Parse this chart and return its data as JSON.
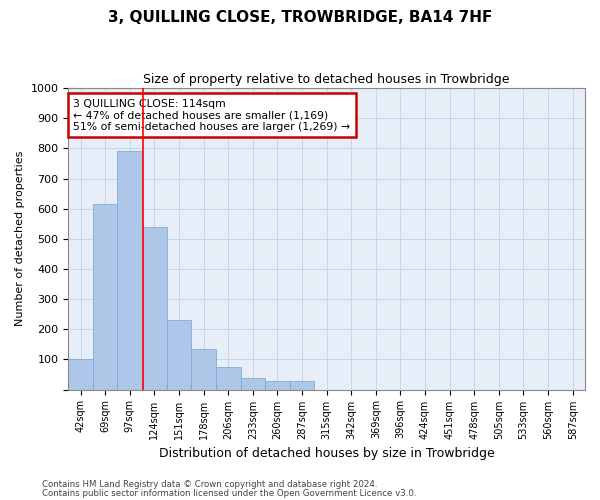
{
  "title": "3, QUILLING CLOSE, TROWBRIDGE, BA14 7HF",
  "subtitle": "Size of property relative to detached houses in Trowbridge",
  "xlabel": "Distribution of detached houses by size in Trowbridge",
  "ylabel": "Number of detached properties",
  "categories": [
    "42sqm",
    "69sqm",
    "97sqm",
    "124sqm",
    "151sqm",
    "178sqm",
    "206sqm",
    "233sqm",
    "260sqm",
    "287sqm",
    "315sqm",
    "342sqm",
    "369sqm",
    "396sqm",
    "424sqm",
    "451sqm",
    "478sqm",
    "505sqm",
    "533sqm",
    "560sqm",
    "587sqm"
  ],
  "values": [
    100,
    615,
    790,
    540,
    230,
    135,
    75,
    40,
    30,
    30,
    0,
    0,
    0,
    0,
    0,
    0,
    0,
    0,
    0,
    0,
    0
  ],
  "bar_color": "#aec6e8",
  "bar_edge_color": "#6fa8d0",
  "grid_color": "#c8d4e8",
  "background_color": "#e8eef8",
  "vline_x": 2.55,
  "annotation_text": "3 QUILLING CLOSE: 114sqm\n← 47% of detached houses are smaller (1,169)\n51% of semi-detached houses are larger (1,269) →",
  "annotation_box_facecolor": "#ffffff",
  "annotation_box_edgecolor": "#cc0000",
  "ylim": [
    0,
    1000
  ],
  "yticks": [
    0,
    100,
    200,
    300,
    400,
    500,
    600,
    700,
    800,
    900,
    1000
  ],
  "footer_line1": "Contains HM Land Registry data © Crown copyright and database right 2024.",
  "footer_line2": "Contains public sector information licensed under the Open Government Licence v3.0."
}
